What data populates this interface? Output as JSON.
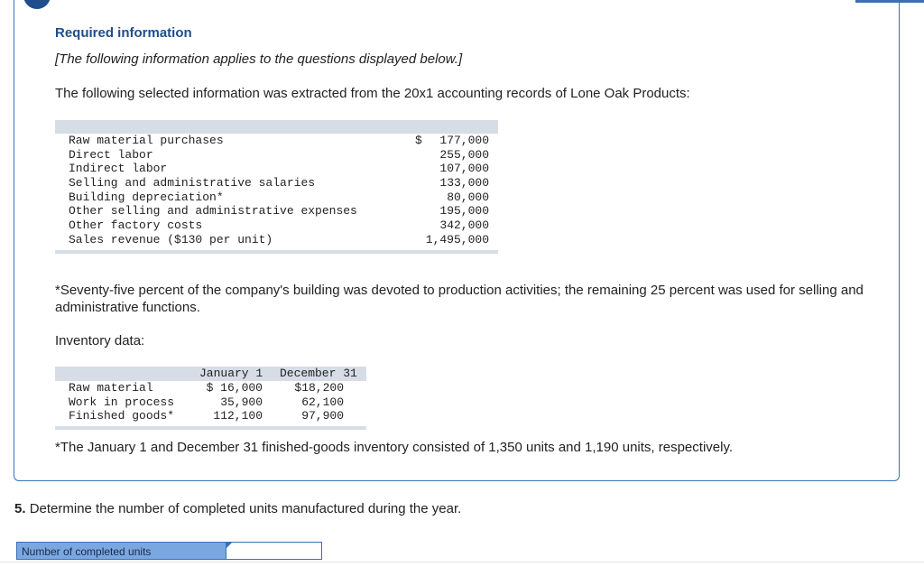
{
  "header": {
    "title": "Required information",
    "note": "[The following information applies to the questions displayed below.]",
    "intro": "The following selected information was extracted from the 20x1 accounting records of Lone Oak Products:"
  },
  "accounts_table": {
    "rows": [
      {
        "label": "Raw material purchases",
        "currency": "$",
        "value": "177,000"
      },
      {
        "label": "Direct labor",
        "currency": "",
        "value": "255,000"
      },
      {
        "label": "Indirect labor",
        "currency": "",
        "value": "107,000"
      },
      {
        "label": "Selling and administrative salaries",
        "currency": "",
        "value": "133,000"
      },
      {
        "label": "Building depreciation*",
        "currency": "",
        "value": "80,000"
      },
      {
        "label": "Other selling and administrative expenses",
        "currency": "",
        "value": "195,000"
      },
      {
        "label": "Other factory costs",
        "currency": "",
        "value": "342,000"
      },
      {
        "label": "Sales revenue ($130 per unit)",
        "currency": "",
        "value": "1,495,000"
      }
    ]
  },
  "footnote_building": "*Seventy-five percent of the company's building was devoted to production activities; the remaining 25 percent was used for selling and administrative functions.",
  "inventory": {
    "title": "Inventory data:",
    "headers": [
      "January 1",
      "December 31"
    ],
    "rows": [
      {
        "label": "Raw material",
        "jan": "$ 16,000",
        "dec": "$18,200"
      },
      {
        "label": "Work in process",
        "jan": "35,900",
        "dec": "62,100"
      },
      {
        "label": "Finished goods*",
        "jan": "112,100",
        "dec": "97,900"
      }
    ]
  },
  "footnote_finished": "*The January 1 and December 31 finished-goods inventory consisted of 1,350 units and 1,190 units, respectively.",
  "question": {
    "number": "5.",
    "text": "Determine the number of completed units manufactured during the year."
  },
  "answer": {
    "label": "Number of completed units",
    "value": ""
  }
}
